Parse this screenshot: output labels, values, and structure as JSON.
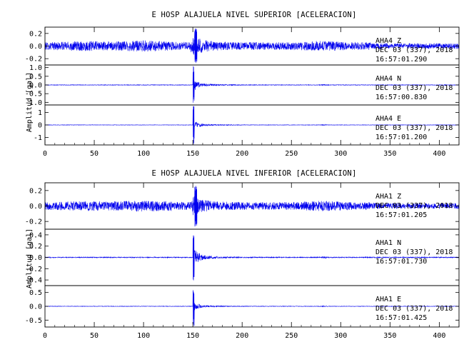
{
  "chart_data": [
    {
      "type": "line",
      "title": "E HOSP ALAJUELA NIVEL SUPERIOR [ACELERACION]",
      "ylabel": "Amplitud [gal]",
      "xlim": [
        0,
        420
      ],
      "x_ticks": [
        0,
        50,
        100,
        150,
        200,
        250,
        300,
        350,
        400
      ],
      "event_onset_x": 150,
      "series": [
        {
          "name": "AHA4 Z",
          "station": "AHA4",
          "component": "Z",
          "date": "DEC 03 (337), 2018",
          "time": "16:57:01.290",
          "ylim": [
            -0.3,
            0.3
          ],
          "y_ticks": [
            "0.2",
            "0.0",
            "-0.2"
          ],
          "y_tick_values": [
            0.2,
            0.0,
            -0.2
          ],
          "noise_amplitude": 0.11,
          "peak_amplitude": 0.28
        },
        {
          "name": "AHA4 N",
          "station": "AHA4",
          "component": "N",
          "date": "DEC 03 (337), 2018",
          "time": "16:57:00.830",
          "ylim": [
            -1.15,
            1.15
          ],
          "y_ticks": [
            "1.0",
            "0.5",
            "0.0",
            "-0.5",
            "-1.0"
          ],
          "y_tick_values": [
            1.0,
            0.5,
            0.0,
            -0.5,
            -1.0
          ],
          "noise_amplitude": 0.06,
          "peak_amplitude": 1.1
        },
        {
          "name": "AHA4 E",
          "station": "AHA4",
          "component": "E",
          "date": "DEC 03 (337), 2018",
          "time": "16:57:01.200",
          "ylim": [
            -1.6,
            1.6
          ],
          "y_ticks": [
            "1",
            "0",
            "-1"
          ],
          "y_tick_values": [
            1,
            0,
            -1
          ],
          "noise_amplitude": 0.06,
          "peak_amplitude": 1.6
        }
      ]
    },
    {
      "type": "line",
      "title": "E HOSP ALAJUELA NIVEL INFERIOR [ACELERACION]",
      "ylabel": "Amplitud [gal]",
      "xlim": [
        0,
        420
      ],
      "x_ticks": [
        0,
        50,
        100,
        150,
        200,
        250,
        300,
        350,
        400
      ],
      "event_onset_x": 150,
      "series": [
        {
          "name": "AHA1 Z",
          "station": "AHA1",
          "component": "Z",
          "date": "DEC 03 (337), 2018",
          "time": "16:57:01.205",
          "ylim": [
            -0.3,
            0.3
          ],
          "y_ticks": [
            "0.2",
            "0.0",
            "-0.2"
          ],
          "y_tick_values": [
            0.2,
            0.0,
            -0.2
          ],
          "noise_amplitude": 0.09,
          "peak_amplitude": 0.28
        },
        {
          "name": "AHA1 N",
          "station": "AHA1",
          "component": "N",
          "date": "DEC 03 (337), 2018",
          "time": "16:57:01.730",
          "ylim": [
            -0.5,
            0.5
          ],
          "y_ticks": [
            "0.4",
            "0.2",
            "0.0",
            "-0.2",
            "-0.4"
          ],
          "y_tick_values": [
            0.4,
            0.2,
            0.0,
            -0.2,
            -0.4
          ],
          "noise_amplitude": 0.03,
          "peak_amplitude": 0.5
        },
        {
          "name": "AHA1 E",
          "station": "AHA1",
          "component": "E",
          "date": "DEC 03 (337), 2018",
          "time": "16:57:01.425",
          "ylim": [
            -0.75,
            0.75
          ],
          "y_ticks": [
            "0.5",
            "0.0",
            "-0.5"
          ],
          "y_tick_values": [
            0.5,
            0.0,
            -0.5
          ],
          "noise_amplitude": 0.03,
          "peak_amplitude": 0.75
        }
      ]
    }
  ],
  "colors": {
    "trace": "#0000ee",
    "axis": "#000000"
  }
}
